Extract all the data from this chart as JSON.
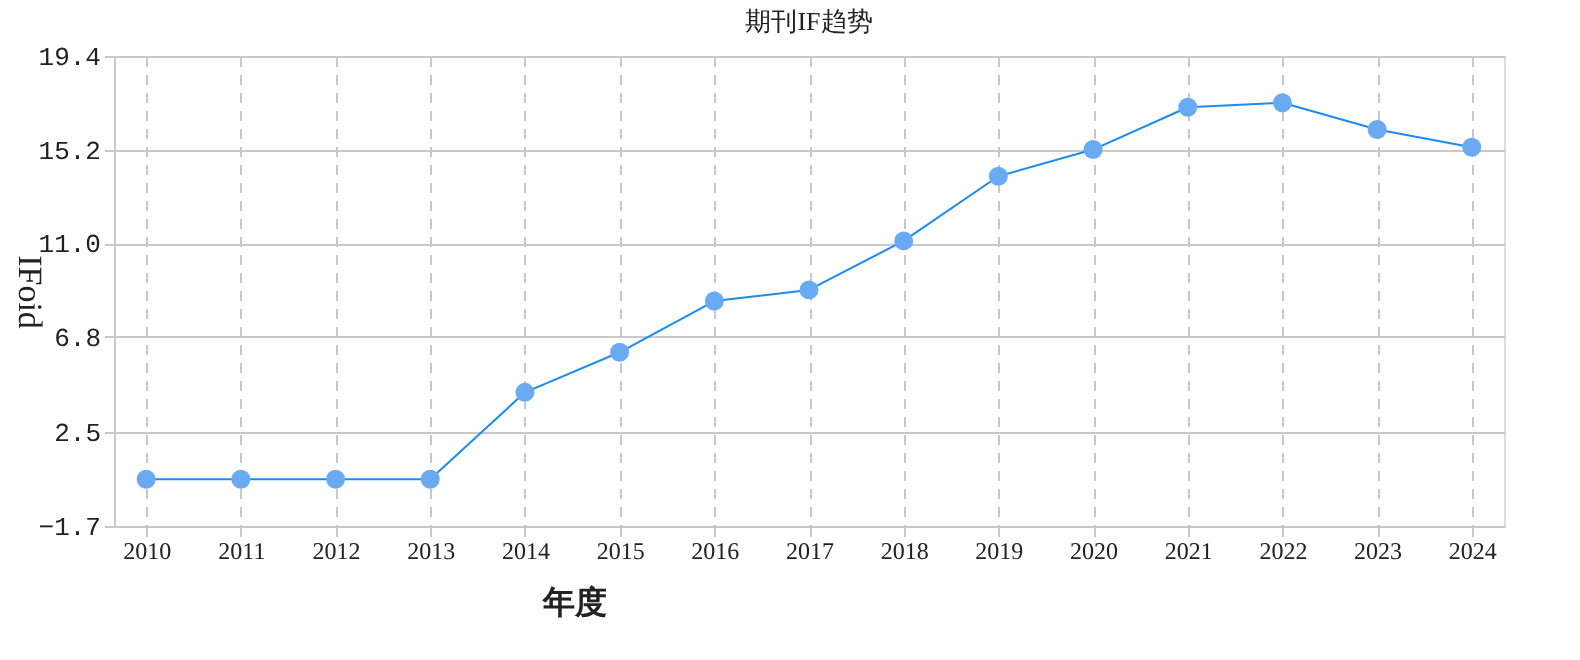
{
  "chart_data": {
    "type": "line",
    "title": "期刊IF趋势",
    "xlabel": "年度",
    "ylabel": "IFoid",
    "categories": [
      "2010",
      "2011",
      "2012",
      "2013",
      "2014",
      "2015",
      "2016",
      "2017",
      "2018",
      "2019",
      "2020",
      "2021",
      "2022",
      "2023",
      "2024"
    ],
    "series": [
      {
        "color": "#1a8cf0",
        "values": [
          0.4,
          0.4,
          0.4,
          0.4,
          4.3,
          6.1,
          8.4,
          8.9,
          11.1,
          14.0,
          15.2,
          17.1,
          17.3,
          16.1,
          15.3
        ]
      }
    ],
    "ylim": [
      -1.7,
      19.4
    ],
    "yticks": [
      -1.7,
      2.5,
      6.8,
      {
        "value": 11,
        "label": "11.0"
      },
      15.2,
      19.4
    ],
    "grid": true,
    "marker": "circle",
    "line_style": "solid"
  }
}
